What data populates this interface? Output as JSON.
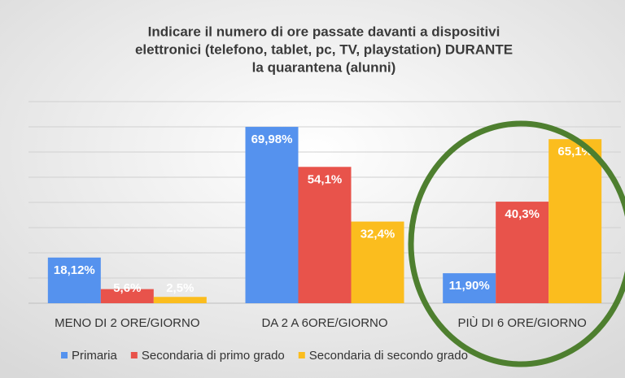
{
  "chart_data": {
    "type": "bar",
    "title": [
      "Indicare il numero di ore passate davanti a dispositivi",
      "elettronici (telefono, tablet, pc, TV, playstation) DURANTE",
      "la quarantena (alunni)"
    ],
    "categories": [
      "MENO DI 2 ORE/GIORNO",
      "DA 2 A 6ORE/GIORNO",
      "PIÙ DI  6 ORE/GIORNO"
    ],
    "series": [
      {
        "name": "Primaria",
        "color": "#5592ee",
        "values": [
          18.12,
          69.98,
          11.9
        ],
        "value_labels": [
          "18,12%",
          "69,98%",
          "11,90%"
        ]
      },
      {
        "name": "Secondaria di primo grado",
        "color": "#e8534b",
        "values": [
          5.6,
          54.1,
          40.3
        ],
        "value_labels": [
          "5,6%",
          "54,1%",
          "40,3%"
        ]
      },
      {
        "name": "Secondaria di secondo grado",
        "color": "#fbbd1e",
        "values": [
          2.5,
          32.4,
          65.1
        ],
        "value_labels": [
          "2,5%",
          "32,4%",
          "65,1%"
        ]
      }
    ],
    "ylim": [
      0,
      80
    ],
    "yticks": [
      0,
      10,
      20,
      30,
      40,
      50,
      60,
      70,
      80
    ],
    "grid": true
  }
}
